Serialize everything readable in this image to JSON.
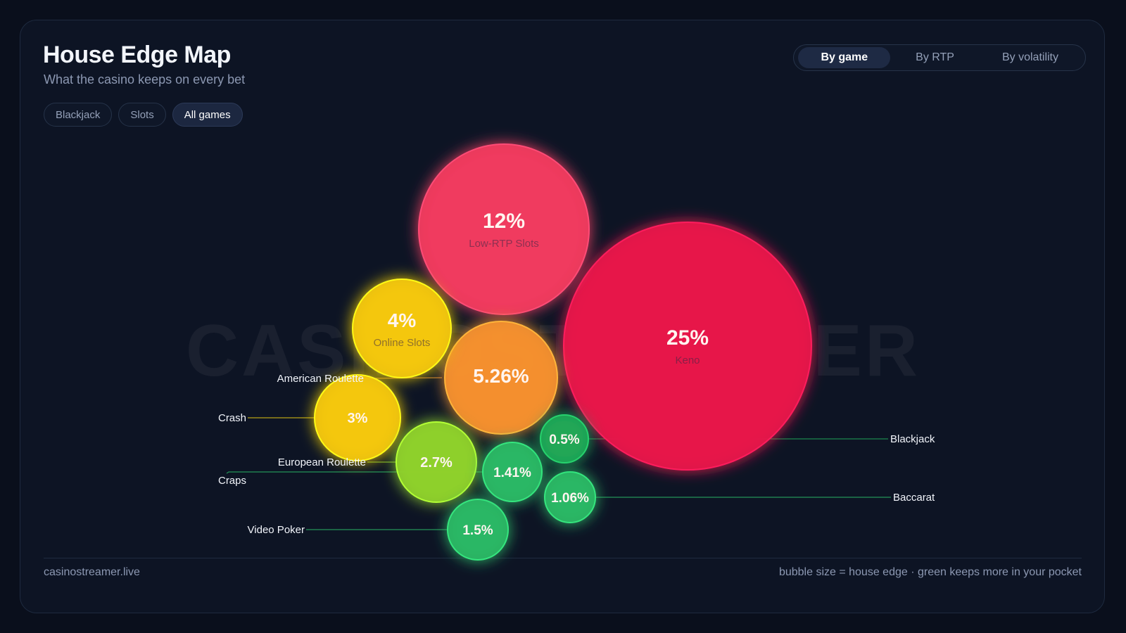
{
  "header": {
    "title": "House Edge Map",
    "subtitle": "What the casino keeps on every bet"
  },
  "filters": [
    {
      "label": "Blackjack",
      "active": false
    },
    {
      "label": "Slots",
      "active": false
    },
    {
      "label": "All games",
      "active": true
    }
  ],
  "view_toggle": [
    {
      "label": "By game",
      "active": true
    },
    {
      "label": "By RTP",
      "active": false
    },
    {
      "label": "By volatility",
      "active": false
    }
  ],
  "watermark": "CASINOSTREAMER",
  "footer": {
    "site": "casinostreamer.live",
    "legend_note": "bubble size = house edge · green keeps more in your pocket"
  },
  "colors": {
    "high": "#e8194a",
    "high_light": "#f23c5e",
    "mid": "#f5902e",
    "low_mid": "#f5c80f",
    "lime": "#8fd12a",
    "low": "#2bb865"
  },
  "chart_data": {
    "type": "bubble",
    "value_unit": "% house edge",
    "series": [
      {
        "name": "Keno",
        "value": 25,
        "label": "25%",
        "color": "#e8194a",
        "callout": "inside"
      },
      {
        "name": "Low-RTP Slots",
        "value": 12,
        "label": "12%",
        "color": "#f23c5e",
        "callout": "inside"
      },
      {
        "name": "Online Slots",
        "value": 4,
        "label": "4%",
        "color": "#f5c80f",
        "callout": "inside"
      },
      {
        "name": "American Roulette",
        "value": 5.26,
        "label": "5.26%",
        "color": "#f5902e",
        "callout": "left"
      },
      {
        "name": "Crash",
        "value": 3,
        "label": "3%",
        "color": "#f5c80f",
        "callout": "left"
      },
      {
        "name": "European Roulette",
        "value": 2.7,
        "label": "2.7%",
        "color": "#8fd12a",
        "callout": "left"
      },
      {
        "name": "Craps",
        "value": 1.41,
        "label": "1.41%",
        "color": "#2bb865",
        "callout": "left"
      },
      {
        "name": "Video Poker",
        "value": 1.5,
        "label": "1.5%",
        "color": "#2bb865",
        "callout": "left"
      },
      {
        "name": "Blackjack",
        "value": 0.5,
        "label": "0.5%",
        "color": "#1fa857",
        "callout": "right"
      },
      {
        "name": "Baccarat",
        "value": 1.06,
        "label": "1.06%",
        "color": "#2bb865",
        "callout": "right"
      }
    ]
  }
}
